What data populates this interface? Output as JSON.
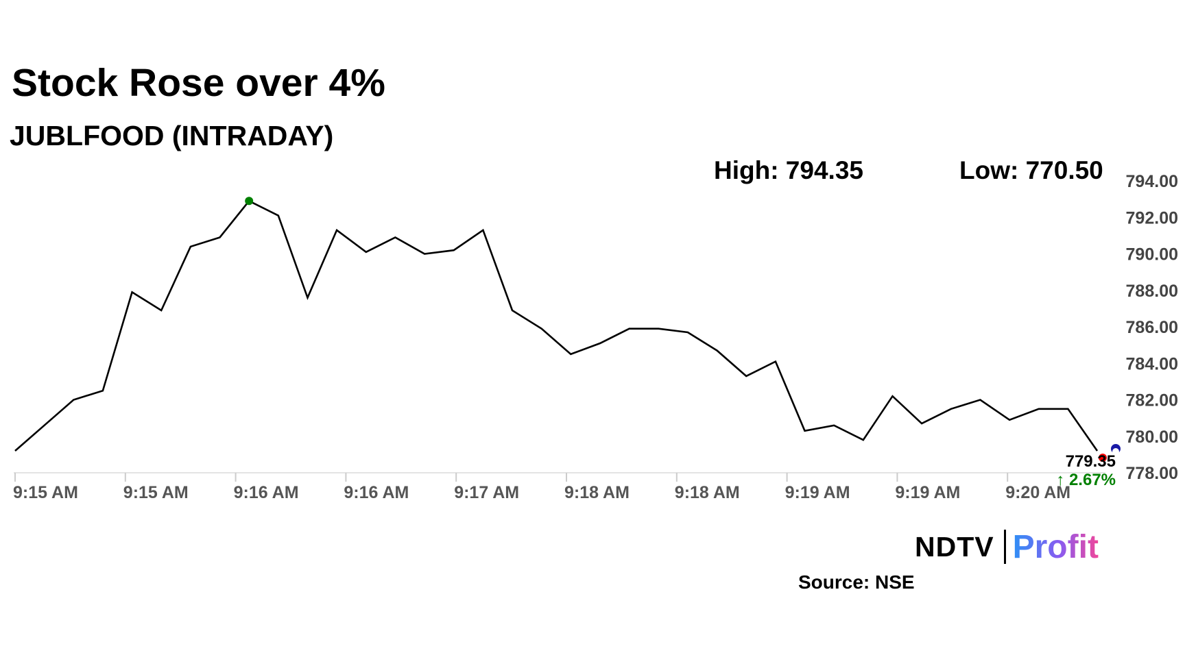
{
  "header": {
    "title": "Stock Rose over 4%",
    "subtitle": "JUBLFOOD (INTRADAY)"
  },
  "stats": {
    "high": "High: 794.35",
    "low": "Low: 770.50"
  },
  "chart_data": {
    "type": "line",
    "ylim": [
      778,
      794
    ],
    "yticks": [
      "794.00",
      "792.00",
      "790.00",
      "788.00",
      "786.00",
      "784.00",
      "782.00",
      "780.00",
      "778.00"
    ],
    "xticks": [
      "9:15 AM",
      "9:15 AM",
      "9:16 AM",
      "9:16 AM",
      "9:17 AM",
      "9:18 AM",
      "9:18 AM",
      "9:19 AM",
      "9:19 AM",
      "9:20 AM"
    ],
    "values": [
      779.2,
      780.6,
      782.0,
      782.5,
      787.9,
      786.9,
      790.4,
      790.9,
      792.9,
      792.1,
      787.6,
      791.3,
      790.1,
      790.9,
      790.0,
      790.2,
      791.3,
      786.9,
      785.9,
      784.5,
      785.1,
      785.9,
      785.9,
      785.7,
      784.7,
      783.3,
      784.1,
      780.3,
      780.6,
      779.8,
      782.2,
      780.7,
      781.5,
      782.0,
      780.9,
      781.5,
      781.5,
      779.2
    ],
    "last_value": "779.35",
    "change": "↑ 2.67%",
    "colors": {
      "line": "#000000",
      "high_marker": "#008000",
      "last_marker": "#ff0000",
      "change": "#008000",
      "indicator": "#1a1aa6"
    }
  },
  "footer": {
    "brand_left": "NDTV",
    "brand_right": "Profit",
    "source": "Source: NSE"
  }
}
